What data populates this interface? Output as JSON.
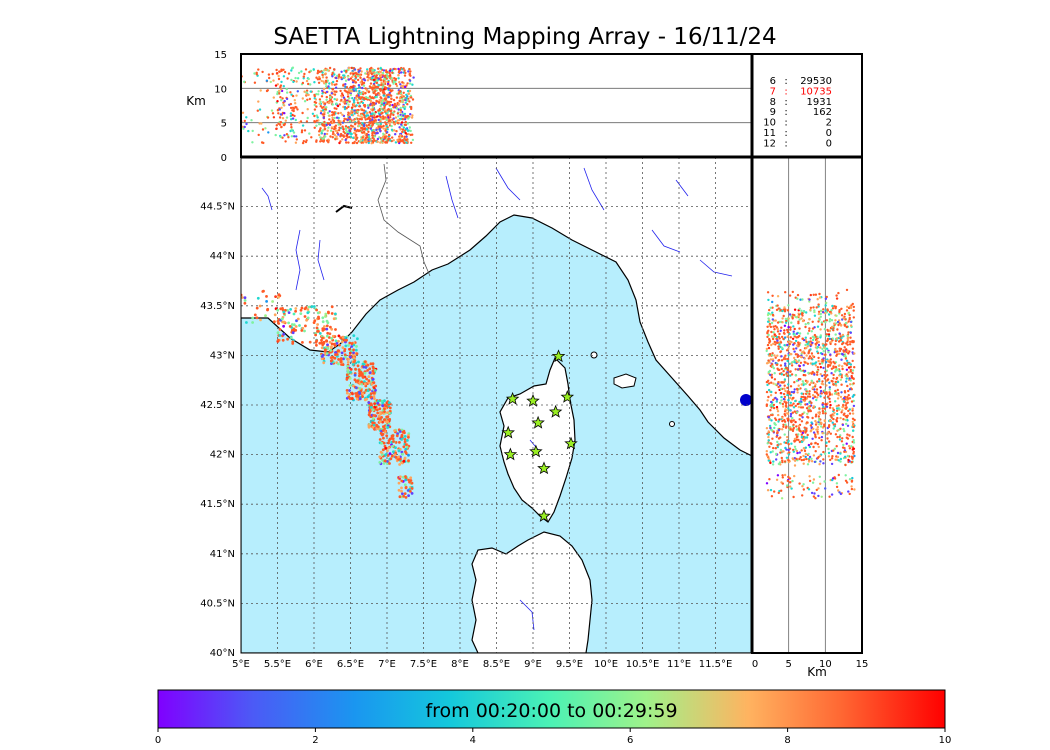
{
  "title": "SAETTA Lightning Mapping Array - 16/11/24",
  "colorbar_label": "from 00:20:00 to 00:29:59",
  "colors": {
    "sea": "#b7eefd",
    "land": "#ffffff",
    "coast": "#000000",
    "rivers": "#2222ee",
    "borders": "#555555",
    "stations": "#99ee22",
    "highlight_count": "#ff0000"
  },
  "station_counts": [
    {
      "n": "6",
      "sep": ":",
      "count": "29530",
      "highlight": false
    },
    {
      "n": "7",
      "sep": ":",
      "count": "10735",
      "highlight": true
    },
    {
      "n": "8",
      "sep": ":",
      "count": "1931",
      "highlight": false
    },
    {
      "n": "9",
      "sep": ":",
      "count": "162",
      "highlight": false
    },
    {
      "n": "10",
      "sep": ":",
      "count": "2",
      "highlight": false
    },
    {
      "n": "11",
      "sep": ":",
      "count": "0",
      "highlight": false
    },
    {
      "n": "12",
      "sep": ":",
      "count": "0",
      "highlight": false
    }
  ],
  "chart_data": {
    "type": "scatter",
    "map": {
      "lon_range": [
        5,
        12
      ],
      "lat_range": [
        40,
        45
      ],
      "lon_ticks": [
        5,
        5.5,
        6,
        6.5,
        7,
        7.5,
        8,
        8.5,
        9,
        9.5,
        10,
        10.5,
        11,
        11.5
      ],
      "lon_tick_labels": [
        "5°E",
        "5.5°E",
        "6°E",
        "6.5°E",
        "7°E",
        "7.5°E",
        "8°E",
        "8.5°E",
        "9°E",
        "9.5°E",
        "10°E",
        "10.5°E",
        "11°E",
        "11.5°E"
      ],
      "lat_ticks": [
        40,
        40.5,
        41,
        41.5,
        42,
        42.5,
        43,
        43.5,
        44,
        44.5
      ],
      "lat_tick_labels": [
        "40°N",
        "40.5°N",
        "41°N",
        "41.5°N",
        "42°N",
        "42.5°N",
        "43°N",
        "43.5°N",
        "44°N",
        "44.5°N"
      ],
      "grid": true,
      "stations": [
        {
          "lon": 9.35,
          "lat": 42.99
        },
        {
          "lon": 8.72,
          "lat": 42.56
        },
        {
          "lon": 9.0,
          "lat": 42.54
        },
        {
          "lon": 9.47,
          "lat": 42.58
        },
        {
          "lon": 9.31,
          "lat": 42.43
        },
        {
          "lon": 9.07,
          "lat": 42.32
        },
        {
          "lon": 8.66,
          "lat": 42.22
        },
        {
          "lon": 9.52,
          "lat": 42.11
        },
        {
          "lon": 8.69,
          "lat": 42.0
        },
        {
          "lon": 9.04,
          "lat": 42.03
        },
        {
          "lon": 9.15,
          "lat": 41.86
        },
        {
          "lon": 9.15,
          "lat": 41.38
        }
      ],
      "clusters": [
        {
          "lon": [
            5.5,
            6.3
          ],
          "lat": [
            43.1,
            43.5
          ],
          "n": 130
        },
        {
          "lon": [
            6.1,
            6.6
          ],
          "lat": [
            42.9,
            43.2
          ],
          "n": 140
        },
        {
          "lon": [
            6.45,
            6.85
          ],
          "lat": [
            42.55,
            42.95
          ],
          "n": 180
        },
        {
          "lon": [
            6.75,
            7.05
          ],
          "lat": [
            42.25,
            42.55
          ],
          "n": 150
        },
        {
          "lon": [
            6.9,
            7.3
          ],
          "lat": [
            41.9,
            42.25
          ],
          "n": 140
        },
        {
          "lon": [
            7.15,
            7.35
          ],
          "lat": [
            41.55,
            41.78
          ],
          "n": 40
        },
        {
          "lon": [
            5.0,
            5.6
          ],
          "lat": [
            43.3,
            43.65
          ],
          "n": 35
        }
      ]
    },
    "altitude_lon_panel": {
      "ylabel": "Km",
      "ylim": [
        0,
        15
      ],
      "y_ticks": [
        0,
        5,
        10,
        15
      ],
      "xlim": [
        5,
        12
      ]
    },
    "altitude_lat_panel": {
      "xlabel": "Km",
      "xlim": [
        0,
        15
      ],
      "x_ticks": [
        0,
        5,
        10,
        15
      ],
      "ylim": [
        40,
        45
      ]
    },
    "colorbar": {
      "range": [
        0,
        10
      ],
      "ticks": [
        0,
        2,
        4,
        6,
        8,
        10
      ],
      "colormap": "rainbow"
    }
  }
}
